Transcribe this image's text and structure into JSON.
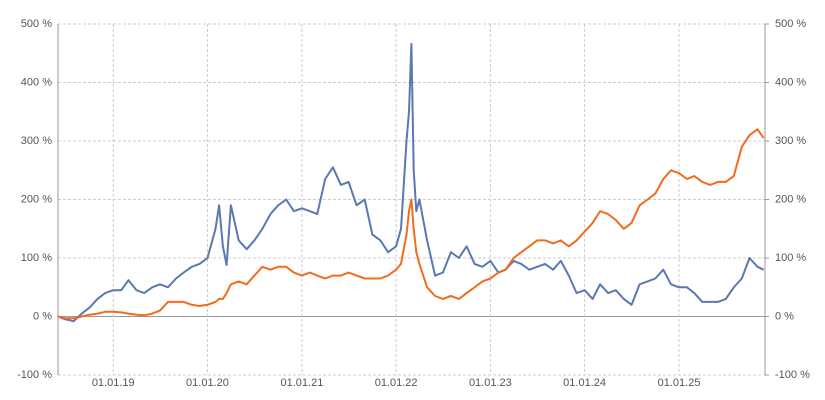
{
  "chart_data": {
    "type": "line",
    "x": [
      "2018-06-01",
      "2018-07-01",
      "2018-08-01",
      "2018-09-01",
      "2018-10-01",
      "2018-11-01",
      "2018-12-01",
      "2019-01-01",
      "2019-02-01",
      "2019-03-01",
      "2019-04-01",
      "2019-05-01",
      "2019-06-01",
      "2019-07-01",
      "2019-08-01",
      "2019-09-01",
      "2019-10-01",
      "2019-11-01",
      "2019-12-01",
      "2020-01-01",
      "2020-02-01",
      "2020-02-15",
      "2020-03-01",
      "2020-03-15",
      "2020-04-01",
      "2020-05-01",
      "2020-06-01",
      "2020-07-01",
      "2020-08-01",
      "2020-09-01",
      "2020-10-01",
      "2020-11-01",
      "2020-12-01",
      "2021-01-01",
      "2021-02-01",
      "2021-03-01",
      "2021-04-01",
      "2021-05-01",
      "2021-06-01",
      "2021-07-01",
      "2021-08-01",
      "2021-09-01",
      "2021-10-01",
      "2021-11-01",
      "2021-12-01",
      "2022-01-01",
      "2022-01-20",
      "2022-02-10",
      "2022-02-20",
      "2022-03-01",
      "2022-03-10",
      "2022-03-20",
      "2022-04-01",
      "2022-05-01",
      "2022-06-01",
      "2022-07-01",
      "2022-08-01",
      "2022-09-01",
      "2022-10-01",
      "2022-11-01",
      "2022-12-01",
      "2023-01-01",
      "2023-02-01",
      "2023-03-01",
      "2023-04-01",
      "2023-05-01",
      "2023-06-01",
      "2023-07-01",
      "2023-08-01",
      "2023-09-01",
      "2023-10-01",
      "2023-11-01",
      "2023-12-01",
      "2024-01-01",
      "2024-02-01",
      "2024-03-01",
      "2024-04-01",
      "2024-05-01",
      "2024-06-01",
      "2024-07-01",
      "2024-08-01",
      "2024-09-01",
      "2024-10-01",
      "2024-11-01",
      "2024-12-01",
      "2025-01-01",
      "2025-02-01",
      "2025-03-01",
      "2025-04-01",
      "2025-05-01",
      "2025-06-01",
      "2025-07-01",
      "2025-08-01",
      "2025-09-01",
      "2025-10-01",
      "2025-11-01",
      "2025-11-25"
    ],
    "series": [
      {
        "color": "#5b78b2",
        "values": [
          0,
          -5,
          -8,
          5,
          15,
          30,
          40,
          45,
          45,
          62,
          45,
          40,
          50,
          55,
          50,
          65,
          75,
          85,
          90,
          100,
          150,
          190,
          120,
          88,
          190,
          130,
          115,
          130,
          150,
          175,
          190,
          200,
          180,
          185,
          180,
          175,
          235,
          255,
          225,
          230,
          190,
          200,
          140,
          130,
          110,
          120,
          150,
          300,
          350,
          466,
          250,
          180,
          200,
          130,
          70,
          75,
          110,
          100,
          120,
          90,
          85,
          95,
          75,
          80,
          95,
          90,
          80,
          85,
          90,
          80,
          95,
          70,
          40,
          45,
          30,
          55,
          40,
          45,
          30,
          20,
          55,
          60,
          65,
          80,
          55,
          50,
          50,
          40,
          25,
          25,
          25,
          30,
          50,
          65,
          100,
          85,
          80
        ]
      },
      {
        "color": "#f26b1f",
        "values": [
          0,
          -3,
          -3,
          0,
          3,
          5,
          8,
          8,
          7,
          5,
          3,
          2,
          5,
          10,
          25,
          25,
          25,
          20,
          18,
          20,
          25,
          30,
          30,
          40,
          55,
          60,
          55,
          70,
          85,
          80,
          85,
          85,
          75,
          70,
          75,
          70,
          65,
          70,
          70,
          75,
          70,
          65,
          65,
          65,
          70,
          80,
          90,
          140,
          180,
          200,
          150,
          110,
          90,
          50,
          35,
          30,
          35,
          30,
          40,
          50,
          60,
          65,
          75,
          80,
          100,
          110,
          120,
          130,
          130,
          125,
          130,
          120,
          130,
          145,
          160,
          180,
          175,
          165,
          150,
          160,
          190,
          200,
          210,
          235,
          250,
          245,
          235,
          240,
          230,
          225,
          230,
          230,
          240,
          290,
          310,
          320,
          305
        ]
      }
    ],
    "xlim": [
      "2018-06-01",
      "2025-11-30"
    ],
    "xticks": [
      {
        "value": "2019-01-01",
        "label": "01.01.19"
      },
      {
        "value": "2020-01-01",
        "label": "01.01.20"
      },
      {
        "value": "2021-01-01",
        "label": "01.01.21"
      },
      {
        "value": "2022-01-01",
        "label": "01.01.22"
      },
      {
        "value": "2023-01-01",
        "label": "01.01.23"
      },
      {
        "value": "2024-01-01",
        "label": "01.01.24"
      },
      {
        "value": "2025-01-01",
        "label": "01.01.25"
      }
    ],
    "ylim": [
      -100,
      500
    ],
    "yticks": [
      {
        "value": -100,
        "label": "-100 %"
      },
      {
        "value": 0,
        "label": "0 %"
      },
      {
        "value": 100,
        "label": "100 %"
      },
      {
        "value": 200,
        "label": "200 %"
      },
      {
        "value": 300,
        "label": "300 %"
      },
      {
        "value": 400,
        "label": "400 %"
      },
      {
        "value": 500,
        "label": "500 %"
      }
    ],
    "y2lim": [
      -100,
      500
    ],
    "y2ticks": [
      {
        "value": -100,
        "label": "-100 %"
      },
      {
        "value": 0,
        "label": "0 %"
      },
      {
        "value": 100,
        "label": "100 %"
      },
      {
        "value": 200,
        "label": "200 %"
      },
      {
        "value": 300,
        "label": "300 %"
      },
      {
        "value": 400,
        "label": "400 %"
      },
      {
        "value": 500,
        "label": "500 %"
      }
    ],
    "grid": true
  }
}
